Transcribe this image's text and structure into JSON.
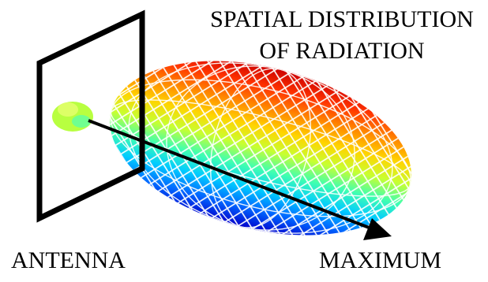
{
  "title": {
    "line1": "SPATIAL DISTRIBUTION",
    "line2": "OF RADIATION"
  },
  "labels": {
    "antenna": "ANTENNA",
    "maximum": "MAXIMUM"
  },
  "colors": {
    "lobe_gradient": [
      "#cc0000",
      "#ff3300",
      "#ff8800",
      "#ffd400",
      "#c8ff30",
      "#40ffb0",
      "#00ccff",
      "#0066ff",
      "#0000cc"
    ],
    "frame": "#000000",
    "arrow": "#000000"
  }
}
